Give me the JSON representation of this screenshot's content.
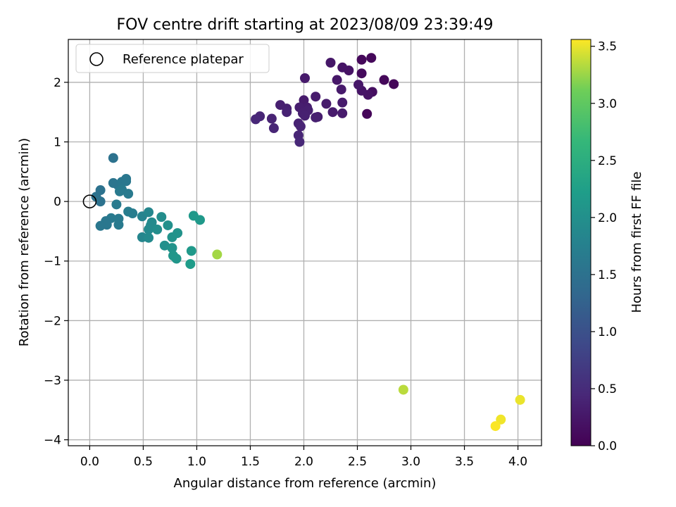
{
  "chart_data": {
    "type": "scatter",
    "title": "FOV centre drift starting at 2023/08/09 23:39:49",
    "xlabel": "Angular distance from reference (arcmin)",
    "ylabel": "Rotation from reference (arcmin)",
    "xlim": [
      -0.2,
      4.22
    ],
    "ylim": [
      -4.1,
      2.72
    ],
    "xticks": [
      0.0,
      0.5,
      1.0,
      1.5,
      2.0,
      2.5,
      3.0,
      3.5,
      4.0
    ],
    "xtick_labels": [
      "0.0",
      "0.5",
      "1.0",
      "1.5",
      "2.0",
      "2.5",
      "3.0",
      "3.5",
      "4.0"
    ],
    "yticks": [
      -4,
      -3,
      -2,
      -1,
      0,
      1,
      2
    ],
    "ytick_labels": [
      "−4",
      "−3",
      "−2",
      "−1",
      "0",
      "1",
      "2"
    ],
    "grid": true,
    "legend": {
      "position": "upper-left",
      "entries": [
        {
          "label": "Reference platepar",
          "marker": "hollow-circle",
          "x": 0.0,
          "y": 0.0
        }
      ]
    },
    "colorbar": {
      "label": "Hours from first FF file",
      "range": [
        0.0,
        3.56
      ],
      "ticks": [
        0.0,
        0.5,
        1.0,
        1.5,
        2.0,
        2.5,
        3.0,
        3.5
      ],
      "tick_labels": [
        "0.0",
        "0.5",
        "1.0",
        "1.5",
        "2.0",
        "2.5",
        "3.0",
        "3.5"
      ],
      "colormap": "viridis"
    },
    "points": [
      {
        "x": 2.54,
        "y": 2.38,
        "c": 0.08
      },
      {
        "x": 2.63,
        "y": 2.41,
        "c": 0.08
      },
      {
        "x": 2.54,
        "y": 2.15,
        "c": 0.1
      },
      {
        "x": 2.75,
        "y": 2.04,
        "c": 0.08
      },
      {
        "x": 2.84,
        "y": 1.97,
        "c": 0.05
      },
      {
        "x": 2.59,
        "y": 1.47,
        "c": 0.06
      },
      {
        "x": 2.64,
        "y": 1.84,
        "c": 0.15
      },
      {
        "x": 2.6,
        "y": 1.79,
        "c": 0.2
      },
      {
        "x": 2.54,
        "y": 1.86,
        "c": 0.22
      },
      {
        "x": 2.51,
        "y": 1.96,
        "c": 0.25
      },
      {
        "x": 2.42,
        "y": 2.2,
        "c": 0.2
      },
      {
        "x": 2.36,
        "y": 2.25,
        "c": 0.22
      },
      {
        "x": 2.31,
        "y": 2.04,
        "c": 0.25
      },
      {
        "x": 2.35,
        "y": 1.88,
        "c": 0.28
      },
      {
        "x": 2.36,
        "y": 1.66,
        "c": 0.3
      },
      {
        "x": 2.36,
        "y": 1.48,
        "c": 0.3
      },
      {
        "x": 2.25,
        "y": 2.33,
        "c": 0.25
      },
      {
        "x": 2.21,
        "y": 1.64,
        "c": 0.3
      },
      {
        "x": 2.27,
        "y": 1.5,
        "c": 0.3
      },
      {
        "x": 2.13,
        "y": 1.42,
        "c": 0.32
      },
      {
        "x": 2.11,
        "y": 1.76,
        "c": 0.3
      },
      {
        "x": 2.01,
        "y": 2.07,
        "c": 0.28
      },
      {
        "x": 2.0,
        "y": 1.7,
        "c": 0.3
      },
      {
        "x": 2.03,
        "y": 1.58,
        "c": 0.32
      },
      {
        "x": 1.96,
        "y": 1.58,
        "c": 0.33
      },
      {
        "x": 2.04,
        "y": 1.53,
        "c": 0.35
      },
      {
        "x": 1.99,
        "y": 1.48,
        "c": 0.35
      },
      {
        "x": 2.01,
        "y": 1.44,
        "c": 0.36
      },
      {
        "x": 1.95,
        "y": 1.31,
        "c": 0.38
      },
      {
        "x": 1.97,
        "y": 1.26,
        "c": 0.4
      },
      {
        "x": 1.95,
        "y": 1.11,
        "c": 0.42
      },
      {
        "x": 1.96,
        "y": 1.0,
        "c": 0.45
      },
      {
        "x": 2.11,
        "y": 1.41,
        "c": 0.35
      },
      {
        "x": 1.84,
        "y": 1.56,
        "c": 0.35
      },
      {
        "x": 1.78,
        "y": 1.62,
        "c": 0.35
      },
      {
        "x": 1.84,
        "y": 1.5,
        "c": 0.38
      },
      {
        "x": 1.7,
        "y": 1.39,
        "c": 0.4
      },
      {
        "x": 1.72,
        "y": 1.23,
        "c": 0.42
      },
      {
        "x": 1.59,
        "y": 1.43,
        "c": 0.42
      },
      {
        "x": 1.55,
        "y": 1.38,
        "c": 0.44
      },
      {
        "x": 0.22,
        "y": 0.73,
        "c": 1.5
      },
      {
        "x": 0.06,
        "y": 0.08,
        "c": 1.5
      },
      {
        "x": 0.1,
        "y": 0.19,
        "c": 1.5
      },
      {
        "x": 0.1,
        "y": 0.0,
        "c": 1.5
      },
      {
        "x": 0.22,
        "y": 0.31,
        "c": 1.55
      },
      {
        "x": 0.26,
        "y": 0.28,
        "c": 1.55
      },
      {
        "x": 0.3,
        "y": 0.33,
        "c": 1.6
      },
      {
        "x": 0.34,
        "y": 0.38,
        "c": 1.6
      },
      {
        "x": 0.34,
        "y": 0.34,
        "c": 1.6
      },
      {
        "x": 0.3,
        "y": 0.2,
        "c": 1.65
      },
      {
        "x": 0.28,
        "y": 0.17,
        "c": 1.65
      },
      {
        "x": 0.36,
        "y": 0.13,
        "c": 1.65
      },
      {
        "x": 0.25,
        "y": -0.05,
        "c": 1.65
      },
      {
        "x": 0.36,
        "y": -0.17,
        "c": 1.7
      },
      {
        "x": 0.4,
        "y": -0.2,
        "c": 1.7
      },
      {
        "x": 0.2,
        "y": -0.28,
        "c": 1.65
      },
      {
        "x": 0.27,
        "y": -0.29,
        "c": 1.65
      },
      {
        "x": 0.15,
        "y": -0.33,
        "c": 1.6
      },
      {
        "x": 0.16,
        "y": -0.39,
        "c": 1.6
      },
      {
        "x": 0.1,
        "y": -0.41,
        "c": 1.6
      },
      {
        "x": 0.27,
        "y": -0.39,
        "c": 1.65
      },
      {
        "x": 0.49,
        "y": -0.25,
        "c": 1.8
      },
      {
        "x": 0.55,
        "y": -0.18,
        "c": 1.85
      },
      {
        "x": 0.58,
        "y": -0.35,
        "c": 1.9
      },
      {
        "x": 0.57,
        "y": -0.4,
        "c": 1.9
      },
      {
        "x": 0.55,
        "y": -0.47,
        "c": 1.9
      },
      {
        "x": 0.63,
        "y": -0.47,
        "c": 1.95
      },
      {
        "x": 0.49,
        "y": -0.6,
        "c": 1.85
      },
      {
        "x": 0.55,
        "y": -0.61,
        "c": 1.9
      },
      {
        "x": 0.67,
        "y": -0.26,
        "c": 1.95
      },
      {
        "x": 0.73,
        "y": -0.4,
        "c": 2.0
      },
      {
        "x": 0.77,
        "y": -0.6,
        "c": 2.05
      },
      {
        "x": 0.82,
        "y": -0.53,
        "c": 2.05
      },
      {
        "x": 0.7,
        "y": -0.74,
        "c": 2.0
      },
      {
        "x": 0.77,
        "y": -0.78,
        "c": 2.05
      },
      {
        "x": 0.78,
        "y": -0.91,
        "c": 2.1
      },
      {
        "x": 0.81,
        "y": -0.96,
        "c": 2.1
      },
      {
        "x": 0.97,
        "y": -0.24,
        "c": 2.15
      },
      {
        "x": 1.03,
        "y": -0.31,
        "c": 2.15
      },
      {
        "x": 0.95,
        "y": -0.83,
        "c": 2.15
      },
      {
        "x": 0.94,
        "y": -1.05,
        "c": 2.2
      },
      {
        "x": 1.19,
        "y": -0.89,
        "c": 3.28
      },
      {
        "x": 2.93,
        "y": -3.16,
        "c": 3.35
      },
      {
        "x": 4.02,
        "y": -3.33,
        "c": 3.5
      },
      {
        "x": 3.84,
        "y": -3.66,
        "c": 3.52
      },
      {
        "x": 3.79,
        "y": -3.77,
        "c": 3.55
      }
    ]
  }
}
